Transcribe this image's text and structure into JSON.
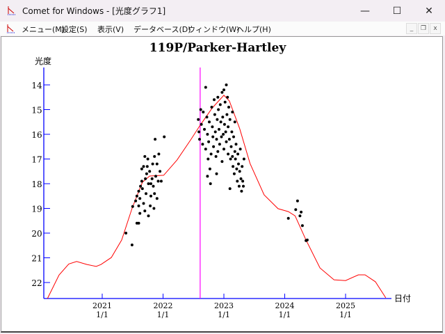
{
  "window": {
    "title": "Comet for Windows - [光度グラフ1]",
    "minimize": "—",
    "maximize": "☐",
    "close": "✕"
  },
  "menu": [
    "メニュー(M)",
    "設定(S)",
    "表示(V)",
    "データベース(D)",
    "ウィンドウ(W)",
    "ヘルプ(H)"
  ],
  "mdi": {
    "minimize": "_",
    "restore": "❐",
    "close": "x"
  },
  "colors": {
    "axis": "#0000ff",
    "curve": "#ff0000",
    "marker": "#ff00ff",
    "points": "#000000"
  },
  "chart_data": {
    "type": "scatter",
    "title": "119P/Parker-Hartley",
    "ylabel": "光度",
    "xlabel": "日付",
    "ylim": [
      22.65,
      13.3
    ],
    "xlim": [
      2020.05,
      2025.75
    ],
    "yticks": [
      14,
      15,
      16,
      17,
      18,
      19,
      20,
      21,
      22
    ],
    "xticks": [
      {
        "year": 2021,
        "l1": "2021",
        "l2": "1/1"
      },
      {
        "year": 2022,
        "l1": "2022",
        "l2": "1/1"
      },
      {
        "year": 2023,
        "l1": "2023",
        "l2": "1/1"
      },
      {
        "year": 2024,
        "l1": "2024",
        "l2": "1/1"
      },
      {
        "year": 2025,
        "l1": "2025",
        "l2": "1/1"
      }
    ],
    "marker_date": 2022.61,
    "curve": [
      [
        2020.1,
        22.65
      ],
      [
        2020.29,
        21.7
      ],
      [
        2020.45,
        21.25
      ],
      [
        2020.58,
        21.15
      ],
      [
        2020.75,
        21.27
      ],
      [
        2020.9,
        21.35
      ],
      [
        2020.98,
        21.27
      ],
      [
        2021.15,
        20.99
      ],
      [
        2021.32,
        20.28
      ],
      [
        2021.49,
        19.0
      ],
      [
        2021.66,
        17.94
      ],
      [
        2021.78,
        17.69
      ],
      [
        2022.01,
        17.66
      ],
      [
        2022.23,
        17.04
      ],
      [
        2022.46,
        16.2
      ],
      [
        2022.61,
        15.63
      ],
      [
        2022.81,
        14.93
      ],
      [
        2023.0,
        14.42
      ],
      [
        2023.09,
        14.65
      ],
      [
        2023.26,
        15.77
      ],
      [
        2023.43,
        17.18
      ],
      [
        2023.66,
        18.45
      ],
      [
        2023.89,
        19.01
      ],
      [
        2024.06,
        19.13
      ],
      [
        2024.17,
        19.3
      ],
      [
        2024.35,
        20.28
      ],
      [
        2024.58,
        21.41
      ],
      [
        2024.81,
        21.89
      ],
      [
        2025.0,
        21.92
      ],
      [
        2025.21,
        21.69
      ],
      [
        2025.32,
        21.69
      ],
      [
        2025.49,
        21.97
      ],
      [
        2025.66,
        22.62
      ]
    ],
    "observations": [
      [
        2021.39,
        20.0
      ],
      [
        2021.49,
        20.48
      ],
      [
        2021.57,
        19.6
      ],
      [
        2021.6,
        19.6
      ],
      [
        2021.5,
        18.92
      ],
      [
        2021.55,
        18.7
      ],
      [
        2021.57,
        18.5
      ],
      [
        2021.6,
        18.3
      ],
      [
        2021.62,
        18.6
      ],
      [
        2021.63,
        18.1
      ],
      [
        2021.65,
        17.9
      ],
      [
        2021.66,
        18.2
      ],
      [
        2021.68,
        18.8
      ],
      [
        2021.7,
        19.1
      ],
      [
        2021.72,
        18.4
      ],
      [
        2021.73,
        17.6
      ],
      [
        2021.74,
        17.3
      ],
      [
        2021.75,
        17.0
      ],
      [
        2021.76,
        18.0
      ],
      [
        2021.78,
        17.5
      ],
      [
        2021.79,
        18.9
      ],
      [
        2021.8,
        18.5
      ],
      [
        2021.82,
        17.8
      ],
      [
        2021.83,
        17.2
      ],
      [
        2021.84,
        18.1
      ],
      [
        2021.85,
        19.0
      ],
      [
        2021.86,
        16.9
      ],
      [
        2021.87,
        16.2
      ],
      [
        2021.88,
        17.7
      ],
      [
        2021.9,
        18.6
      ],
      [
        2021.9,
        17.2
      ],
      [
        2021.92,
        17.9
      ],
      [
        2021.93,
        16.8
      ],
      [
        2021.95,
        17.5
      ],
      [
        2021.97,
        17.9
      ],
      [
        2022.02,
        16.1
      ],
      [
        2021.7,
        16.9
      ],
      [
        2021.65,
        17.4
      ],
      [
        2021.6,
        18.9
      ],
      [
        2021.62,
        19.2
      ],
      [
        2021.76,
        19.3
      ],
      [
        2021.8,
        18.0
      ],
      [
        2021.86,
        18.4
      ],
      [
        2021.71,
        17.8
      ],
      [
        2021.68,
        17.3
      ],
      [
        2022.58,
        15.4
      ],
      [
        2022.59,
        15.9
      ],
      [
        2022.6,
        16.2
      ],
      [
        2022.62,
        15.0
      ],
      [
        2022.63,
        15.6
      ],
      [
        2022.65,
        16.4
      ],
      [
        2022.66,
        15.1
      ],
      [
        2022.68,
        15.8
      ],
      [
        2022.7,
        16.6
      ],
      [
        2022.7,
        14.1
      ],
      [
        2022.72,
        15.3
      ],
      [
        2022.73,
        16.0
      ],
      [
        2022.74,
        17.0
      ],
      [
        2022.75,
        16.3
      ],
      [
        2022.76,
        15.5
      ],
      [
        2022.77,
        17.4
      ],
      [
        2022.78,
        18.0
      ],
      [
        2022.79,
        16.8
      ],
      [
        2022.8,
        14.9
      ],
      [
        2022.81,
        15.7
      ],
      [
        2022.82,
        16.1
      ],
      [
        2022.83,
        16.5
      ],
      [
        2022.84,
        14.6
      ],
      [
        2022.85,
        15.2
      ],
      [
        2022.86,
        15.9
      ],
      [
        2022.87,
        16.9
      ],
      [
        2022.88,
        16.2
      ],
      [
        2022.89,
        15.4
      ],
      [
        2022.9,
        14.5
      ],
      [
        2022.9,
        16.7
      ],
      [
        2022.91,
        15.0
      ],
      [
        2022.92,
        15.8
      ],
      [
        2022.93,
        16.4
      ],
      [
        2022.94,
        14.8
      ],
      [
        2022.95,
        15.5
      ],
      [
        2022.96,
        16.1
      ],
      [
        2022.97,
        14.3
      ],
      [
        2022.97,
        17.1
      ],
      [
        2022.98,
        15.3
      ],
      [
        2022.99,
        16.0
      ],
      [
        2023.0,
        14.2
      ],
      [
        2023.0,
        16.6
      ],
      [
        2023.01,
        15.6
      ],
      [
        2023.02,
        14.7
      ],
      [
        2023.03,
        15.9
      ],
      [
        2023.04,
        14.0
      ],
      [
        2023.04,
        16.3
      ],
      [
        2023.05,
        15.2
      ],
      [
        2023.06,
        14.5
      ],
      [
        2023.07,
        16.8
      ],
      [
        2023.07,
        15.7
      ],
      [
        2023.08,
        14.9
      ],
      [
        2023.09,
        16.2
      ],
      [
        2023.1,
        15.4
      ],
      [
        2023.11,
        17.0
      ],
      [
        2023.12,
        16.5
      ],
      [
        2023.13,
        15.9
      ],
      [
        2023.14,
        16.9
      ],
      [
        2023.15,
        17.3
      ],
      [
        2023.16,
        16.1
      ],
      [
        2023.17,
        17.6
      ],
      [
        2023.18,
        16.7
      ],
      [
        2023.19,
        17.0
      ],
      [
        2023.2,
        16.4
      ],
      [
        2023.21,
        17.4
      ],
      [
        2023.22,
        17.9
      ],
      [
        2023.23,
        16.8
      ],
      [
        2023.24,
        17.2
      ],
      [
        2023.25,
        18.1
      ],
      [
        2023.26,
        17.5
      ],
      [
        2023.27,
        16.6
      ],
      [
        2023.28,
        17.8
      ],
      [
        2023.29,
        18.3
      ],
      [
        2023.3,
        17.3
      ],
      [
        2023.31,
        17.9
      ],
      [
        2023.32,
        18.1
      ],
      [
        2023.33,
        17.0
      ],
      [
        2023.18,
        15.5
      ],
      [
        2023.14,
        15.1
      ],
      [
        2023.1,
        18.2
      ],
      [
        2022.88,
        17.6
      ],
      [
        2022.73,
        17.7
      ],
      [
        2024.06,
        19.4
      ],
      [
        2024.18,
        19.05
      ],
      [
        2024.21,
        18.7
      ],
      [
        2024.27,
        19.15
      ],
      [
        2024.29,
        19.7
      ],
      [
        2024.35,
        20.3
      ],
      [
        2024.37,
        20.28
      ],
      [
        2024.25,
        19.3
      ]
    ]
  }
}
